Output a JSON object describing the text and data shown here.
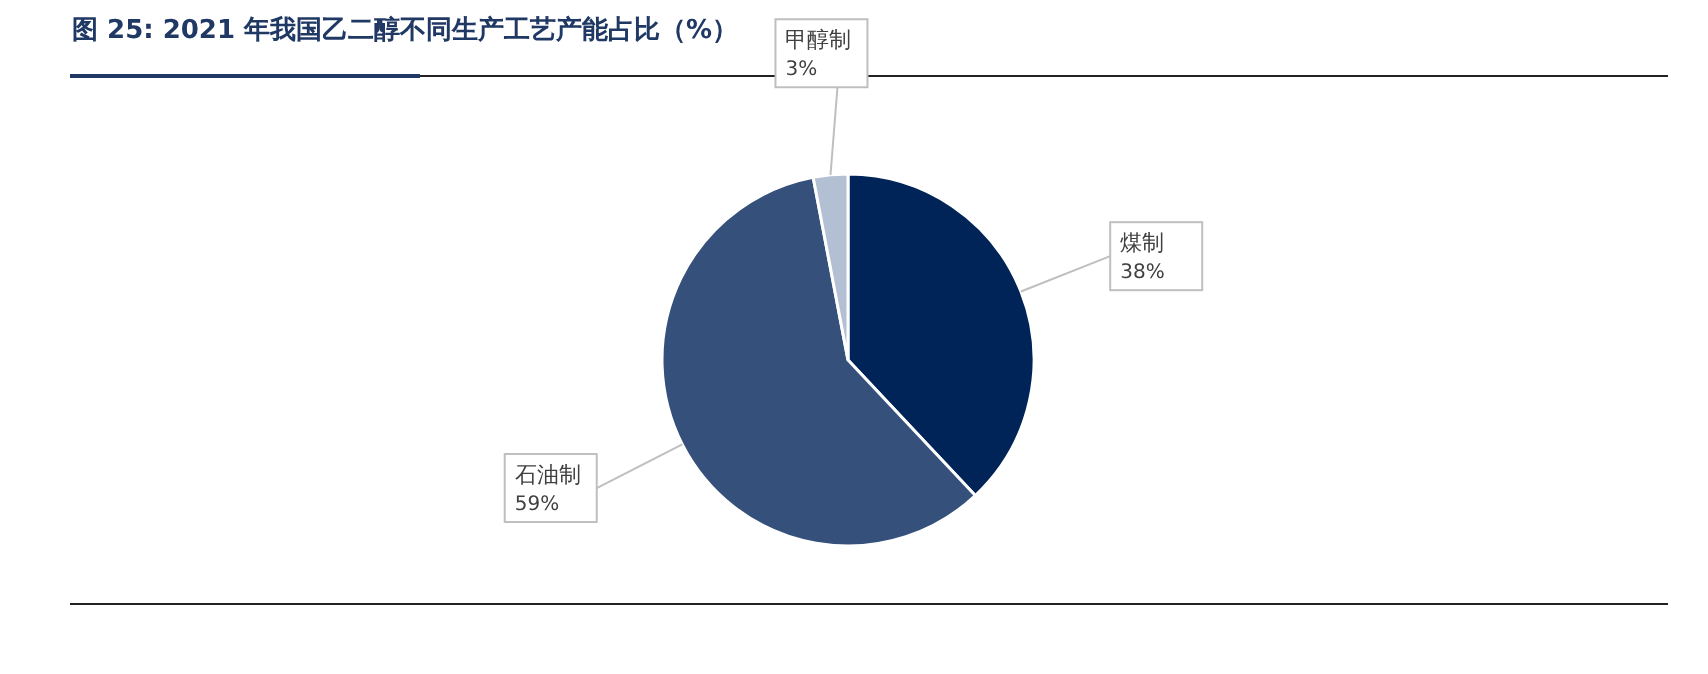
{
  "chart_data": {
    "type": "pie",
    "title": "图 25: 2021 年我国乙二醇不同生产工艺产能占比（%）",
    "categories": [
      "煤制",
      "石油制",
      "甲醇制"
    ],
    "values": [
      38,
      59,
      3
    ],
    "colors": [
      "#002458",
      "#34507b",
      "#b3c0d3"
    ],
    "value_labels": [
      "38%",
      "59%",
      "3%"
    ]
  }
}
